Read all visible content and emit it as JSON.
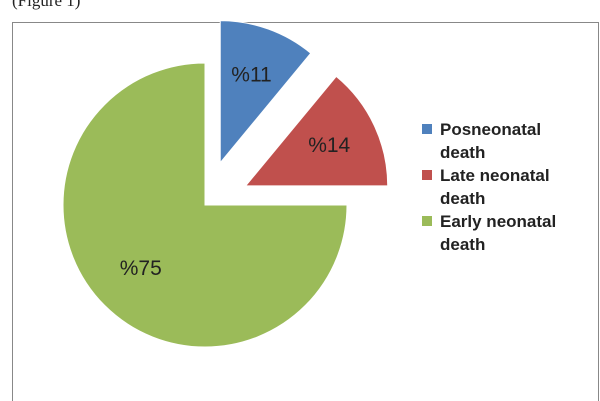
{
  "chart_data": {
    "type": "pie",
    "annotation": "(Figure 1)",
    "categories": [
      "Posneonatal death",
      "Late neonatal death",
      "Early neonatal death"
    ],
    "values": [
      11,
      14,
      75
    ],
    "value_labels": [
      "%11",
      "%14",
      "%75"
    ],
    "colors": [
      "#4f81bd",
      "#c0504d",
      "#9bbb59"
    ],
    "legend": "right"
  }
}
